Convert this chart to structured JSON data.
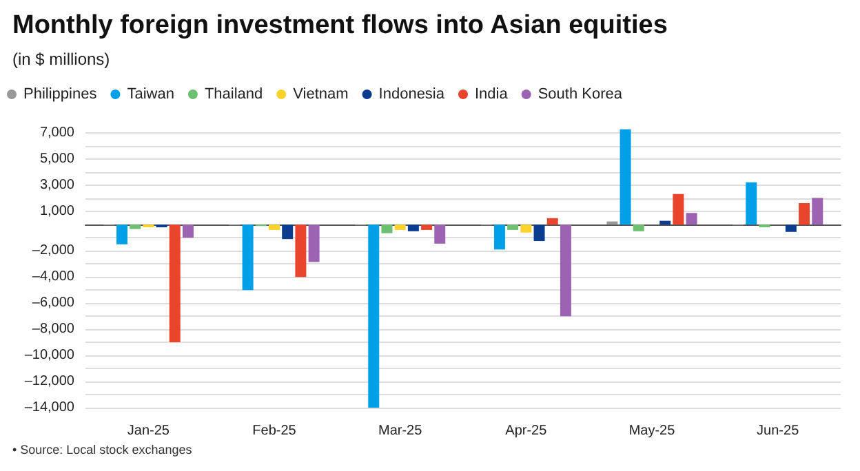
{
  "chart_data": {
    "type": "bar",
    "title": "Monthly foreign investment flows into Asian equities",
    "subtitle": "(in $ millions)",
    "annotations": [
      "• Source: Local stock exchanges"
    ],
    "categories": [
      "Jan-25",
      "Feb-25",
      "Mar-25",
      "Apr-25",
      "May-25",
      "Jun-25"
    ],
    "series": [
      {
        "name": "Philippines",
        "color": "#999999",
        "values": [
          -50,
          -50,
          -50,
          -50,
          250,
          -50
        ]
      },
      {
        "name": "Taiwan",
        "color": "#00a0e9",
        "values": [
          -1500,
          -5000,
          -14000,
          -1900,
          7300,
          3250
        ]
      },
      {
        "name": "Thailand",
        "color": "#6cc070",
        "values": [
          -330,
          -100,
          -650,
          -400,
          -500,
          -200
        ]
      },
      {
        "name": "Vietnam",
        "color": "#fdd22b",
        "values": [
          -200,
          -400,
          -400,
          -600,
          null,
          null
        ]
      },
      {
        "name": "Indonesia",
        "color": "#0a3d8f",
        "values": [
          -200,
          -1100,
          -500,
          -1250,
          300,
          -550
        ]
      },
      {
        "name": "India",
        "color": "#e8452c",
        "values": [
          -9000,
          -4000,
          -400,
          500,
          2350,
          1650
        ]
      },
      {
        "name": "South Korea",
        "color": "#9b63b2",
        "values": [
          -1000,
          -2850,
          -1450,
          -7000,
          900,
          2050
        ]
      }
    ],
    "ylim": [
      -14000,
      7500
    ],
    "yticks": [
      {
        "value": -14000,
        "label": "–14,000"
      },
      {
        "value": -13000,
        "label": null
      },
      {
        "value": -12000,
        "label": "–12,000"
      },
      {
        "value": -11000,
        "label": null
      },
      {
        "value": -10000,
        "label": "–10,000"
      },
      {
        "value": -9000,
        "label": null
      },
      {
        "value": -8000,
        "label": "–8,000"
      },
      {
        "value": -7000,
        "label": null
      },
      {
        "value": -6000,
        "label": "–6,000"
      },
      {
        "value": -5000,
        "label": null
      },
      {
        "value": -4000,
        "label": "–4,000"
      },
      {
        "value": -3000,
        "label": null
      },
      {
        "value": -2000,
        "label": "–2,000"
      },
      {
        "value": -1000,
        "label": null
      },
      {
        "value": 1000,
        "label": "1,000"
      },
      {
        "value": 2000,
        "label": null
      },
      {
        "value": 3000,
        "label": "3,000"
      },
      {
        "value": 4000,
        "label": null
      },
      {
        "value": 5000,
        "label": "5,000"
      },
      {
        "value": 6000,
        "label": null
      },
      {
        "value": 7000,
        "label": "7,000"
      }
    ],
    "grid": "y",
    "legend": "top left",
    "marker": "circle"
  }
}
